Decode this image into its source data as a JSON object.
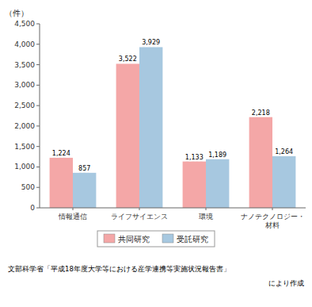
{
  "chart_data": {
    "type": "bar",
    "y_label": "（件）",
    "categories": [
      "情報通信",
      "ライフサイエンス",
      "環境",
      "ナノテクノロジー・\n材料"
    ],
    "series": [
      {
        "name": "共同研究",
        "color": "#f4a7a7",
        "values": [
          1224,
          3522,
          1133,
          2218
        ],
        "value_labels": [
          "1,224",
          "3,522",
          "1,133",
          "2,218"
        ]
      },
      {
        "name": "受託研究",
        "color": "#a7c8e0",
        "values": [
          857,
          3929,
          1189,
          1264
        ],
        "value_labels": [
          "857",
          "3,929",
          "1,189",
          "1,264"
        ]
      }
    ],
    "ylim": [
      0,
      4500
    ],
    "yticks": [
      0,
      500,
      {
        "value": 1000,
        "label": "1,000"
      },
      {
        "value": 1500,
        "label": "1,500"
      },
      {
        "value": 2000,
        "label": "2,000"
      },
      {
        "value": 2500,
        "label": "2,500"
      },
      {
        "value": 3000,
        "label": "3,000"
      },
      {
        "value": 3500,
        "label": "3,500"
      },
      {
        "value": 4000,
        "label": "4,000"
      },
      {
        "value": 4500,
        "label": "4,500"
      }
    ],
    "data_labels": true,
    "grid": false,
    "legend": "bottom",
    "annotations": [
      "文部科学省「平成18年度大学等における産学連携等実施状況報告書」",
      "により作成"
    ]
  }
}
